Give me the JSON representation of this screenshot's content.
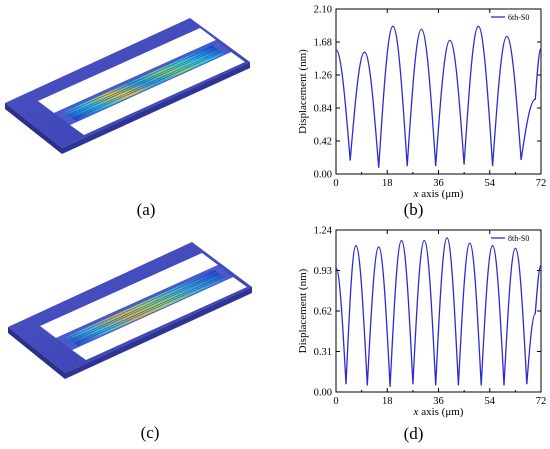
{
  "panels": {
    "a": {
      "caption": "(a)"
    },
    "c": {
      "caption": "(c)"
    }
  },
  "chart_data": [
    {
      "id": "b",
      "type": "line",
      "caption": "(b)",
      "xlabel_italic": "x",
      "xlabel_rest": " axis (μm)",
      "ylabel": "Displacement (nm)",
      "xlim": [
        0,
        72
      ],
      "ylim": [
        0,
        2.1
      ],
      "xticks": [
        0,
        18,
        36,
        54,
        72
      ],
      "yticks": [
        "0.00",
        "0.42",
        "0.84",
        "1.26",
        "1.68",
        "2.10"
      ],
      "legend_position": "top-right",
      "color": "#2b2bd6",
      "series": [
        {
          "name": "6th-S0",
          "x": [
            0,
            5,
            10,
            15,
            20,
            25,
            30,
            35,
            40,
            45,
            50,
            55,
            60,
            65,
            70,
            72
          ],
          "y": [
            1.58,
            0.17,
            1.55,
            0.08,
            1.88,
            0.1,
            1.84,
            0.1,
            1.7,
            0.12,
            1.88,
            0.1,
            1.75,
            0.18,
            0.95,
            1.6
          ]
        }
      ]
    },
    {
      "id": "d",
      "type": "line",
      "caption": "(d)",
      "xlabel_italic": "x",
      "xlabel_rest": " axis (μm)",
      "ylabel": "Displacement (nm)",
      "xlim": [
        0,
        72
      ],
      "ylim": [
        0,
        1.24
      ],
      "xticks": [
        0,
        18,
        36,
        54,
        72
      ],
      "yticks": [
        "0.00",
        "0.31",
        "0.62",
        "0.93",
        "1.24"
      ],
      "legend_position": "top-right",
      "color": "#2b2bd6",
      "series": [
        {
          "name": "8th-S0",
          "x": [
            0,
            3.5,
            7,
            11,
            15,
            19,
            23,
            27,
            31,
            35,
            39,
            43,
            47,
            51,
            55,
            59,
            63,
            67,
            70,
            72
          ],
          "y": [
            0.95,
            0.06,
            1.12,
            0.05,
            1.11,
            0.04,
            1.16,
            0.06,
            1.16,
            0.05,
            1.18,
            0.05,
            1.14,
            0.05,
            1.12,
            0.05,
            1.1,
            0.06,
            0.6,
            0.97
          ]
        }
      ]
    }
  ]
}
